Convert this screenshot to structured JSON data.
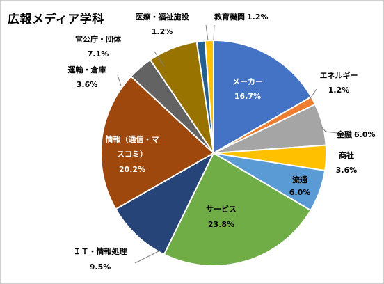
{
  "chart_data": {
    "type": "pie",
    "title": "広報メディア学科",
    "slices": [
      {
        "label": "メーカー",
        "value": 16.7,
        "value_label": "16.7%",
        "color": "#4472c4",
        "label_inside": true
      },
      {
        "label": "エネルギー",
        "value": 1.2,
        "value_label": "1.2%",
        "color": "#ed7d31",
        "label_inside": false
      },
      {
        "label": "金融",
        "value": 6.0,
        "value_label": "6.0%",
        "color": "#a5a5a5",
        "label_inside": false
      },
      {
        "label": "商社",
        "value": 3.6,
        "value_label": "3.6%",
        "color": "#ffc000",
        "label_inside": false
      },
      {
        "label": "流通",
        "value": 6.0,
        "value_label": "6.0%",
        "color": "#5b9bd5",
        "label_inside": true
      },
      {
        "label": "サービス",
        "value": 23.8,
        "value_label": "23.8%",
        "color": "#70ad47",
        "label_inside": true
      },
      {
        "label": "ＩＴ・情報処理",
        "value": 9.5,
        "value_label": "9.5%",
        "color": "#264478",
        "label_inside": false
      },
      {
        "label": "情報（通信・マスコミ）",
        "value": 20.2,
        "value_label": "20.2%",
        "color": "#9e480e",
        "label_inside": true
      },
      {
        "label": "運輸・倉庫",
        "value": 3.6,
        "value_label": "3.6%",
        "color": "#636363",
        "label_inside": false
      },
      {
        "label": "官公庁・団体",
        "value": 7.1,
        "value_label": "7.1%",
        "color": "#997300",
        "label_inside": false
      },
      {
        "label": "医療・福祉施設",
        "value": 1.2,
        "value_label": "1.2%",
        "color": "#255e91",
        "label_inside": false
      },
      {
        "label": "教育機関",
        "value": 1.2,
        "value_label": "1.2%",
        "color": "#ffc000",
        "label_inside": false
      }
    ]
  }
}
